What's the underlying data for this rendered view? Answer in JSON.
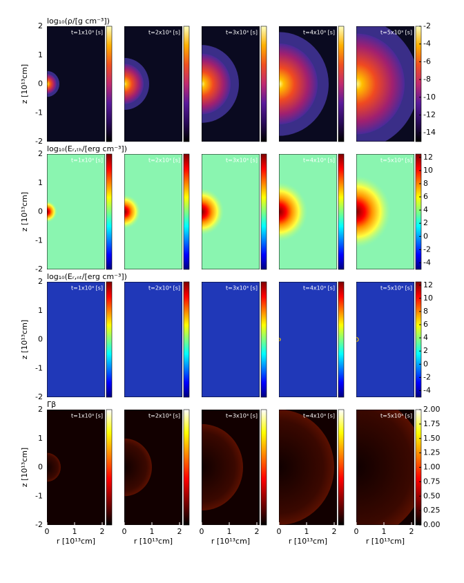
{
  "chart_data": [
    {
      "type": "image",
      "title": "log₁₀(ρ/[g cm⁻³])",
      "times": [
        "t=1x10³ [s]",
        "t=2x10³ [s]",
        "t=3x10³ [s]",
        "t=4x10³ [s]",
        "t=5x10³ [s]"
      ],
      "ylabel": "z [10¹³cm]",
      "xlim": [
        0,
        2.1
      ],
      "ylim": [
        -2,
        2
      ],
      "yticks": [
        -2,
        -1,
        0,
        1,
        2
      ],
      "cblim": [
        -15,
        -2
      ],
      "cbticks": [
        -14,
        -12,
        -10,
        -8,
        -6,
        -4,
        -2
      ],
      "colormap": "gnuplot"
    },
    {
      "type": "image",
      "title": "log₁₀(Eᵣ,ₜₕ/[erg cm⁻³])",
      "times": [
        "t=1x10³ [s]",
        "t=2x10³ [s]",
        "t=3x10³ [s]",
        "t=4x10³ [s]",
        "t=5x10³ [s]"
      ],
      "ylabel": "z [10¹³cm]",
      "xlim": [
        0,
        2.1
      ],
      "ylim": [
        -2,
        2
      ],
      "yticks": [
        -2,
        -1,
        0,
        1,
        2
      ],
      "cblim": [
        -5,
        12.5
      ],
      "cbticks": [
        -4,
        -2,
        0,
        2,
        4,
        6,
        8,
        10,
        12
      ],
      "colormap": "jet"
    },
    {
      "type": "image",
      "title": "log₁₀(Eᵣ,ₙₜ/[erg cm⁻³])",
      "times": [
        "t=1x10³ [s]",
        "t=2x10³ [s]",
        "t=3x10³ [s]",
        "t=4x10³ [s]",
        "t=5x10³ [s]"
      ],
      "ylabel": "z [10¹³cm]",
      "xlim": [
        0,
        2.1
      ],
      "ylim": [
        -2,
        2
      ],
      "yticks": [
        -2,
        -1,
        0,
        1,
        2
      ],
      "cblim": [
        -5,
        12.5
      ],
      "cbticks": [
        -4,
        -2,
        0,
        2,
        4,
        6,
        8,
        10,
        12
      ],
      "colormap": "jet"
    },
    {
      "type": "image",
      "title": "Γβ",
      "times": [
        "t=1x10³ [s]",
        "t=2x10³ [s]",
        "t=3x10³ [s]",
        "t=4x10³ [s]",
        "t=5x10³ [s]"
      ],
      "ylabel": "z [10¹³cm]",
      "xlabel": "r [10¹³cm]",
      "xlim": [
        0,
        2.1
      ],
      "xticks": [
        0,
        1,
        2
      ],
      "ylim": [
        -2,
        2
      ],
      "yticks": [
        -2,
        -1,
        0,
        1,
        2
      ],
      "cblim": [
        0,
        2
      ],
      "cbticks": [
        {
          "value": 0,
          "label": "0.00"
        },
        {
          "value": 0.25,
          "label": "0.25"
        },
        {
          "value": 0.5,
          "label": "0.50"
        },
        {
          "value": 0.75,
          "label": "0.75"
        },
        {
          "value": 1,
          "label": "1.00"
        },
        {
          "value": 1.25,
          "label": "1.25"
        },
        {
          "value": 1.5,
          "label": "1.50"
        },
        {
          "value": 1.75,
          "label": "1.75"
        },
        {
          "value": 2,
          "label": "2.00"
        }
      ],
      "colormap": "hot"
    }
  ]
}
